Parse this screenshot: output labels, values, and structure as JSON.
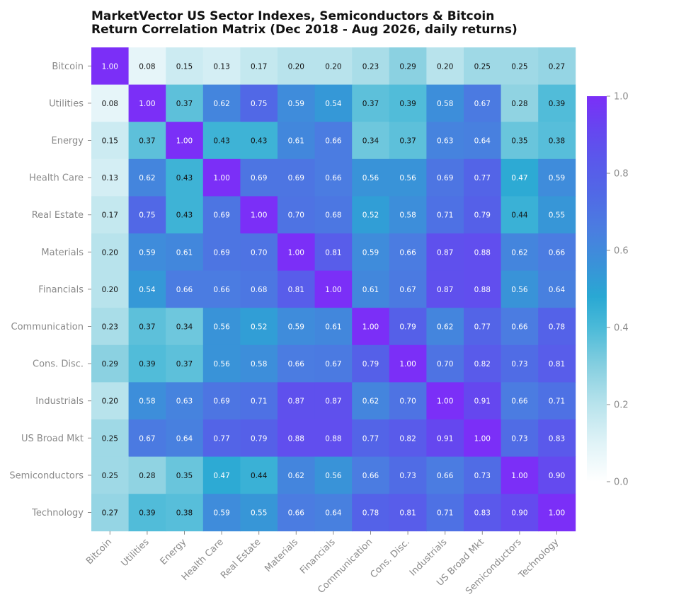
{
  "chart_data": {
    "type": "heatmap",
    "title_lines": [
      "MarketVector US Sector Indexes, Semiconductors & Bitcoin",
      "Return Correlation Matrix (Dec 2018 - Aug 2026, daily returns)"
    ],
    "labels": [
      "Bitcoin",
      "Utilities",
      "Energy",
      "Health Care",
      "Real Estate",
      "Materials",
      "Financials",
      "Communication",
      "Cons. Disc.",
      "Industrials",
      "US Broad Mkt",
      "Semiconductors",
      "Technology"
    ],
    "matrix": [
      [
        1.0,
        0.08,
        0.15,
        0.13,
        0.17,
        0.2,
        0.2,
        0.23,
        0.29,
        0.2,
        0.25,
        0.25,
        0.27
      ],
      [
        0.08,
        1.0,
        0.37,
        0.62,
        0.75,
        0.59,
        0.54,
        0.37,
        0.39,
        0.58,
        0.67,
        0.28,
        0.39
      ],
      [
        0.15,
        0.37,
        1.0,
        0.43,
        0.43,
        0.61,
        0.66,
        0.34,
        0.37,
        0.63,
        0.64,
        0.35,
        0.38
      ],
      [
        0.13,
        0.62,
        0.43,
        1.0,
        0.69,
        0.69,
        0.66,
        0.56,
        0.56,
        0.69,
        0.77,
        0.47,
        0.59
      ],
      [
        0.17,
        0.75,
        0.43,
        0.69,
        1.0,
        0.7,
        0.68,
        0.52,
        0.58,
        0.71,
        0.79,
        0.44,
        0.55
      ],
      [
        0.2,
        0.59,
        0.61,
        0.69,
        0.7,
        1.0,
        0.81,
        0.59,
        0.66,
        0.87,
        0.88,
        0.62,
        0.66
      ],
      [
        0.2,
        0.54,
        0.66,
        0.66,
        0.68,
        0.81,
        1.0,
        0.61,
        0.67,
        0.87,
        0.88,
        0.56,
        0.64
      ],
      [
        0.23,
        0.37,
        0.34,
        0.56,
        0.52,
        0.59,
        0.61,
        1.0,
        0.79,
        0.62,
        0.77,
        0.66,
        0.78
      ],
      [
        0.29,
        0.39,
        0.37,
        0.56,
        0.58,
        0.66,
        0.67,
        0.79,
        1.0,
        0.7,
        0.82,
        0.73,
        0.81
      ],
      [
        0.2,
        0.58,
        0.63,
        0.69,
        0.71,
        0.87,
        0.87,
        0.62,
        0.7,
        1.0,
        0.91,
        0.66,
        0.71
      ],
      [
        0.25,
        0.67,
        0.64,
        0.77,
        0.79,
        0.88,
        0.88,
        0.77,
        0.82,
        0.91,
        1.0,
        0.73,
        0.83
      ],
      [
        0.25,
        0.28,
        0.35,
        0.47,
        0.44,
        0.62,
        0.56,
        0.66,
        0.73,
        0.66,
        0.73,
        1.0,
        0.9
      ],
      [
        0.27,
        0.39,
        0.38,
        0.59,
        0.55,
        0.66,
        0.64,
        0.78,
        0.81,
        0.71,
        0.83,
        0.9,
        1.0
      ]
    ],
    "value_format": "0.00",
    "colorbar": {
      "range": [
        0.0,
        1.0
      ],
      "ticks": [
        0.0,
        0.2,
        0.4,
        0.6,
        0.8,
        1.0
      ],
      "tick_labels": [
        "0.0",
        "0.2",
        "0.4",
        "0.6",
        "0.8",
        "1.0"
      ],
      "colormap": [
        {
          "value": 0.0,
          "color": "#ffffff"
        },
        {
          "value": 0.1,
          "color": "#e0f3f7"
        },
        {
          "value": 0.2,
          "color": "#b8e3ec"
        },
        {
          "value": 0.3,
          "color": "#86cfe0"
        },
        {
          "value": 0.4,
          "color": "#4bbad8"
        },
        {
          "value": 0.48,
          "color": "#29a8d3"
        },
        {
          "value": 0.56,
          "color": "#3993d8"
        },
        {
          "value": 0.65,
          "color": "#4a7ee0"
        },
        {
          "value": 0.75,
          "color": "#5168e6"
        },
        {
          "value": 0.85,
          "color": "#5c55ec"
        },
        {
          "value": 0.92,
          "color": "#6745f0"
        },
        {
          "value": 1.0,
          "color": "#7b2ff7"
        }
      ]
    },
    "colors": {
      "tick_label": "#8a8a8a",
      "dark_annotation": "#111111",
      "light_annotation": "#ffffff",
      "title": "#111111"
    }
  }
}
